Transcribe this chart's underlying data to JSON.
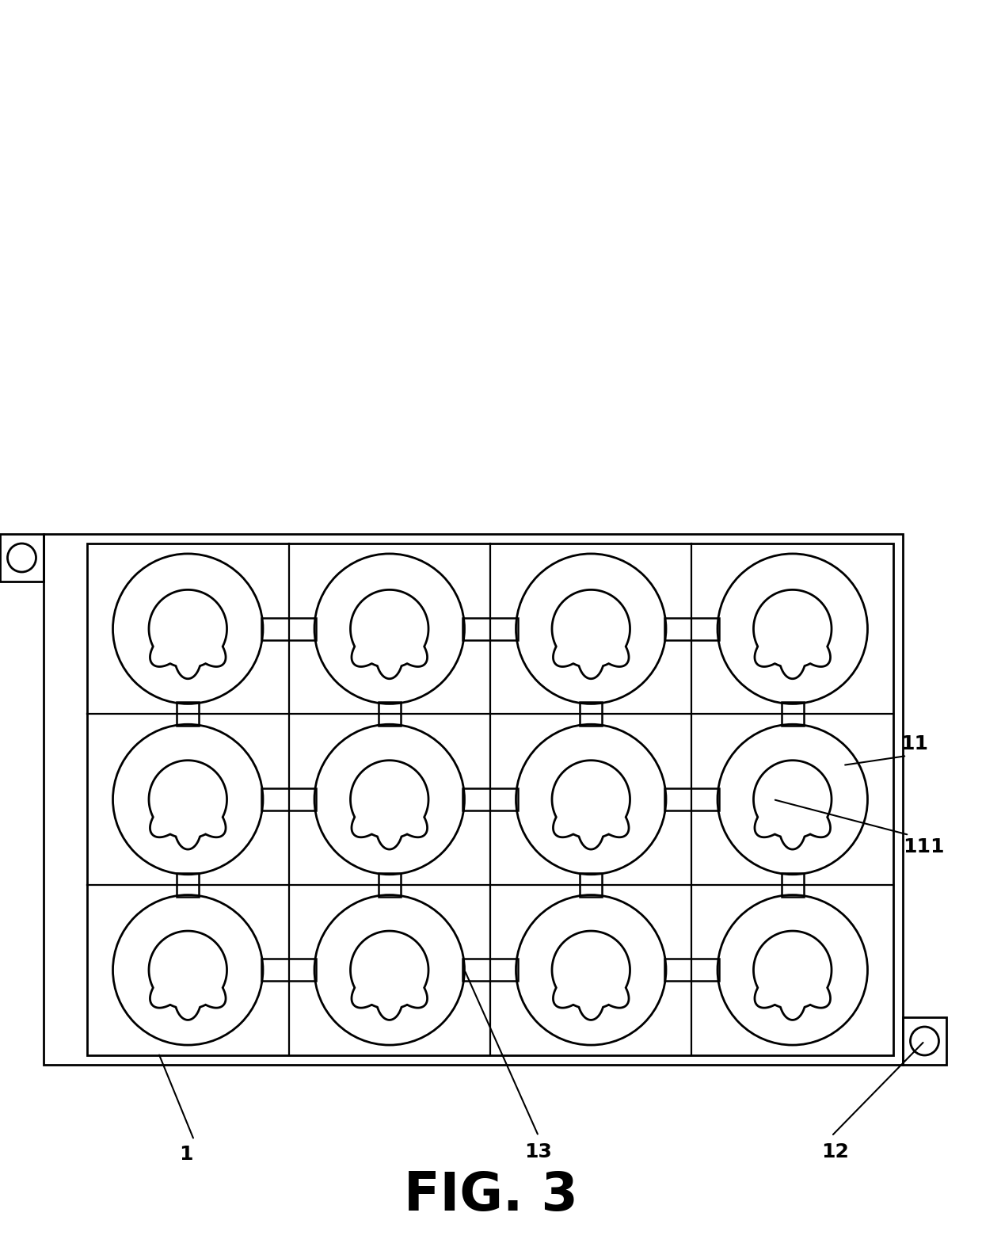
{
  "title": "FIG. 3",
  "background_color": "#ffffff",
  "line_color": "#000000",
  "line_width": 2.0,
  "grid_rows": 3,
  "grid_cols": 4,
  "label_fontsize": 18,
  "title_fontsize": 48
}
